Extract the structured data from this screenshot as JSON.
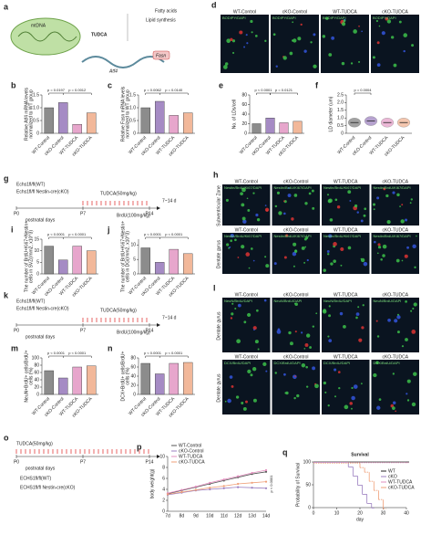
{
  "figure": {
    "a": {
      "panel": "a",
      "mtdna": "mtDNA",
      "tudca": "TUDCA",
      "atf4": "Atf4",
      "fasn": "Fasn",
      "fatty": "Fatty acids",
      "lipid": "Lipid synthesis"
    },
    "d": {
      "panel": "d",
      "columns": [
        "WT-Control",
        "cKO-Control",
        "WT-TUDCA",
        "cKO-TUDCA"
      ],
      "stains": [
        "BODIPY/DAPI"
      ]
    },
    "g": {
      "panel": "g",
      "wt": "Echs1fl/fl(WT)",
      "cko": "Echs1fl/fl Nestin-cre(cKO)",
      "tudca": "TUDCA(50mg/kg)",
      "brdu": "BrdU(100mg/kg)",
      "duration": "7~14 d",
      "days": [
        "P0",
        "P7",
        "P14"
      ],
      "axis": "postnatal days"
    },
    "h": {
      "panel": "h",
      "columns": [
        "WT-Control",
        "cKO-Control",
        "WT-TUDCA",
        "cKO-TUDCA"
      ],
      "rows": [
        "Subventricular Zone",
        "Dentate gyrus"
      ],
      "stains": [
        "Nestin/BrdU/Ki67/DAPI",
        "Nestin/BrdU/Ki67/DAPI"
      ]
    },
    "k": {
      "panel": "k",
      "wt": "Echs1fl/fl(WT)",
      "cko": "Echs1fl/fl Nestin-cre(cKO)",
      "tudca": "TUDCA(50mg/kg)",
      "brdu": "BrdU(100mg/kg)",
      "duration": "7~14 d",
      "days": [
        "P0",
        "P7",
        "P14"
      ],
      "axis": "postnatal days"
    },
    "l": {
      "panel": "l",
      "columns": [
        "WT-Control",
        "cKO-Control",
        "WT-TUDCA",
        "cKO-TUDCA"
      ],
      "rows": [
        "Dentate gyrus",
        "Dentate gyrus"
      ],
      "stains": [
        "NeuN/BrdU/DAPI",
        "DCX/BrdU/DAPI"
      ]
    },
    "o": {
      "panel": "o",
      "tudca": "TUDCA(50mg/kg)",
      "days": [
        "P0",
        "P7",
        "P14"
      ],
      "axis": "postnatal days",
      "wt": "ECHS1fl/fl(WT)",
      "cko": "ECHS1fl/fl Nestin-cre(cKO)"
    }
  },
  "chart_data": [
    {
      "type": "bar",
      "panel": "b",
      "ylabel": "Relative Atf4 mRNA levels",
      "ylabel2": "normalized to WT group",
      "categories": [
        "WT-Control",
        "cKO-Control",
        "WT-TUDCA",
        "cKO-TUDCA"
      ],
      "values": [
        1.0,
        1.2,
        0.35,
        0.8
      ],
      "colors": [
        "#8c8c8c",
        "#a58bc4",
        "#e7a6cc",
        "#f2b89a"
      ],
      "ylim": [
        0,
        1.5
      ],
      "yticks": [
        0,
        0.5,
        {
          "value": 1,
          "label": "1.0"
        },
        1.5
      ],
      "annotations": [
        "p = 0.0197",
        "p = 0.0012"
      ]
    },
    {
      "type": "bar",
      "panel": "c",
      "ylabel": "Relative Fasn mRNA levels",
      "ylabel2": "normalized to WT group",
      "categories": [
        "WT-Control",
        "cKO-Control",
        "WT-TUDCA",
        "cKO-TUDCA"
      ],
      "values": [
        1.0,
        1.25,
        0.7,
        0.8
      ],
      "colors": [
        "#8c8c8c",
        "#a58bc4",
        "#e7a6cc",
        "#f2b89a"
      ],
      "ylim": [
        0,
        1.5
      ],
      "yticks": [
        0,
        0.5,
        {
          "value": 1,
          "label": "1.0"
        },
        1.5
      ],
      "annotations": [
        "p = 0.0062",
        "p = 0.0140"
      ]
    },
    {
      "type": "bar",
      "panel": "e",
      "ylabel": "No. of LDs/cell",
      "categories": [
        "WT-Control",
        "cKO-Control",
        "WT-TUDCA",
        "cKO-TUDCA"
      ],
      "values": [
        20,
        32,
        22,
        25
      ],
      "colors": [
        "#8c8c8c",
        "#a58bc4",
        "#e7a6cc",
        "#f2b89a"
      ],
      "ylim": [
        0,
        80
      ],
      "yticks": [
        0,
        20,
        40,
        60,
        80
      ],
      "annotations": [
        "p < 0.0001",
        "p = 0.0121"
      ]
    },
    {
      "type": "violin",
      "panel": "f",
      "ylabel": "LD diameter (um)",
      "categories": [
        "WT-Control",
        "cKO-Control",
        "WT-TUDCA",
        "cKO-TUDCA"
      ],
      "values": [
        0.7,
        0.8,
        0.7,
        0.7
      ],
      "colors": [
        "#8c8c8c",
        "#a58bc4",
        "#e7a6cc",
        "#f2b89a"
      ],
      "ylim": [
        0,
        2.5
      ],
      "yticks": [
        0,
        0.5,
        {
          "value": 1,
          "label": "1.0"
        },
        1.5,
        {
          "value": 2,
          "label": "2.0"
        },
        2.5
      ],
      "annotations": [
        "p = 0.0004"
      ]
    },
    {
      "type": "bar",
      "panel": "i",
      "ylabel": "The number of BrdU+Ki67+Nestin+",
      "ylabel2": "cells in SVZ(/mm2, x10^3)",
      "categories": [
        "WT-Control",
        "cKO-Control",
        "WT-TUDCA",
        "cKO-TUDCA"
      ],
      "values": [
        12,
        6,
        12,
        10
      ],
      "colors": [
        "#8c8c8c",
        "#a58bc4",
        "#e7a6cc",
        "#f2b89a"
      ],
      "ylim": [
        0,
        15
      ],
      "yticks": [
        0,
        5,
        10,
        15
      ],
      "annotations": [
        "p < 0.0001",
        "p < 0.0001"
      ]
    },
    {
      "type": "bar",
      "panel": "j",
      "ylabel": "The number of BrdU+Ki67+Nestin+",
      "ylabel2": "cells in DG(/mm2, x10^3)",
      "categories": [
        "WT-Control",
        "cKO-Control",
        "WT-TUDCA",
        "cKO-TUDCA"
      ],
      "values": [
        9,
        4,
        8.5,
        7
      ],
      "colors": [
        "#8c8c8c",
        "#a58bc4",
        "#e7a6cc",
        "#f2b89a"
      ],
      "ylim": [
        0,
        12
      ],
      "yticks": [
        0,
        5,
        10
      ],
      "annotations": [
        "p < 0.0001",
        "p < 0.0001"
      ]
    },
    {
      "type": "bar",
      "panel": "m",
      "ylabel": "NeuN+BrdU+ cells/BrdU+",
      "ylabel2": "cells (%)",
      "categories": [
        "WT-Control",
        "cKO-Control",
        "WT-TUDCA",
        "cKO-TUDCA"
      ],
      "values": [
        65,
        45,
        75,
        78
      ],
      "colors": [
        "#8c8c8c",
        "#a58bc4",
        "#e7a6cc",
        "#f2b89a"
      ],
      "ylim": [
        0,
        100
      ],
      "yticks": [
        0,
        20,
        40,
        60,
        80,
        100
      ],
      "annotations": [
        "p < 0.0001",
        "p < 0.0001"
      ]
    },
    {
      "type": "bar",
      "panel": "n",
      "ylabel": "DCX+BrdU+ cells/BrdU+",
      "ylabel2": "cells (%)",
      "categories": [
        "WT-Control",
        "cKO-Control",
        "WT-TUDCA",
        "cKO-TUDCA"
      ],
      "values": [
        68,
        45,
        68,
        70
      ],
      "colors": [
        "#8c8c8c",
        "#a58bc4",
        "#e7a6cc",
        "#f2b89a"
      ],
      "ylim": [
        0,
        80
      ],
      "yticks": [
        0,
        20,
        40,
        60,
        80
      ],
      "annotations": [
        "p < 0.0001",
        "p < 0.0001"
      ]
    },
    {
      "type": "line",
      "panel": "p",
      "ylabel": "body weight(g)",
      "categories": [
        "7d",
        "8d",
        "9d",
        "10d",
        "11d",
        "12d",
        "13d",
        "14d"
      ],
      "ylim": [
        0,
        10
      ],
      "yticks": [
        0,
        2,
        4,
        6,
        8,
        10
      ],
      "annotations": [
        "p < 0.0001"
      ],
      "series": [
        {
          "name": "WT-Control",
          "color": "#555555",
          "values": [
            3.2,
            3.8,
            4.4,
            5.0,
            5.6,
            6.2,
            6.8,
            7.2
          ]
        },
        {
          "name": "cKO-Control",
          "color": "#9b7fc0",
          "values": [
            3.0,
            3.4,
            3.8,
            4.0,
            4.2,
            4.4,
            4.3,
            4.2
          ]
        },
        {
          "name": "WT-TUDCA",
          "color": "#e38fbf",
          "values": [
            3.3,
            3.9,
            4.5,
            5.2,
            5.8,
            6.4,
            7.0,
            7.5
          ]
        },
        {
          "name": "cKO-TUDCA",
          "color": "#ef9f78",
          "values": [
            3.1,
            3.5,
            3.9,
            4.3,
            4.6,
            5.0,
            5.2,
            5.4
          ]
        }
      ]
    },
    {
      "type": "survival",
      "panel": "q",
      "title": "Survival",
      "xlabel": "day",
      "ylabel": "Probability of Survival",
      "xlim": [
        0,
        40
      ],
      "xticks": [
        0,
        10,
        20,
        30,
        40
      ],
      "ylim": [
        0,
        100
      ],
      "yticks": [
        0,
        50,
        100
      ],
      "series": [
        {
          "name": "WT",
          "color": "#222222",
          "x": [
            0,
            40
          ],
          "values": [
            100,
            100
          ]
        },
        {
          "name": "cKO",
          "color": "#9b7fc0",
          "x": [
            0,
            15,
            17,
            19,
            21,
            23,
            25
          ],
          "values": [
            100,
            90,
            70,
            50,
            30,
            10,
            0
          ]
        },
        {
          "name": "WT-TUDCA",
          "color": "#e38fbf",
          "x": [
            0,
            40
          ],
          "values": [
            100,
            100
          ]
        },
        {
          "name": "cKO-TUDCA",
          "color": "#ef9f78",
          "x": [
            0,
            20,
            22,
            24,
            26,
            28,
            30
          ],
          "values": [
            100,
            90,
            80,
            60,
            40,
            20,
            0
          ]
        }
      ]
    }
  ]
}
